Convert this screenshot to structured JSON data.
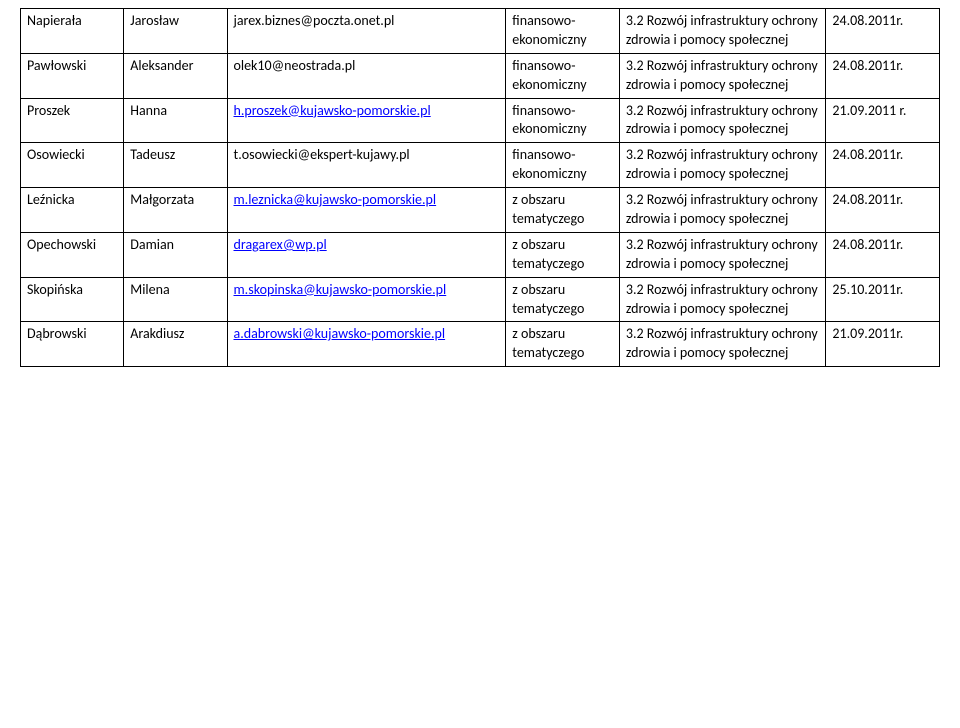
{
  "table": {
    "rows": [
      {
        "surname": "Napierała",
        "firstname": "Jarosław",
        "email": "jarex.biznes@poczta.onet.pl",
        "email_is_link": false,
        "area": "finansowo-ekonomiczny",
        "topic": "3.2 Rozwój infrastruktury ochrony zdrowia i pomocy społecznej",
        "date": "24.08.2011r."
      },
      {
        "surname": "Pawłowski",
        "firstname": "Aleksander",
        "email": "olek10@neostrada.pl",
        "email_is_link": false,
        "area": "finansowo-ekonomiczny",
        "topic": "3.2 Rozwój infrastruktury ochrony zdrowia i pomocy społecznej",
        "date": "24.08.2011r."
      },
      {
        "surname": "Proszek",
        "firstname": "Hanna",
        "email": "h.proszek@kujawsko-pomorskie.pl",
        "email_is_link": true,
        "area": "finansowo-ekonomiczny",
        "topic": "3.2 Rozwój infrastruktury ochrony zdrowia i pomocy społecznej",
        "date": "21.09.2011 r."
      },
      {
        "surname": "Osowiecki",
        "firstname": "Tadeusz",
        "email": "t.osowiecki@ekspert-kujawy.pl",
        "email_is_link": false,
        "area": "finansowo-ekonomiczny",
        "topic": "3.2 Rozwój infrastruktury ochrony zdrowia i pomocy społecznej",
        "date": "24.08.2011r."
      },
      {
        "surname": "Leźnicka",
        "firstname": "Małgorzata",
        "email": "m.leznicka@kujawsko-pomorskie.pl",
        "email_is_link": true,
        "area": "z obszaru tematyczego",
        "topic": "3.2 Rozwój infrastruktury ochrony zdrowia i pomocy społecznej",
        "date": "24.08.2011r."
      },
      {
        "surname": "Opechowski",
        "firstname": "Damian",
        "email": "dragarex@wp.pl",
        "email_is_link": true,
        "area": "z obszaru tematyczego",
        "topic": "3.2 Rozwój infrastruktury ochrony zdrowia i pomocy społecznej",
        "date": "24.08.2011r."
      },
      {
        "surname": "Skopińska",
        "firstname": "Milena",
        "email": "m.skopinska@kujawsko-pomorskie.pl",
        "email_is_link": true,
        "area": "z obszaru tematyczego",
        "topic": "3.2 Rozwój infrastruktury ochrony zdrowia i pomocy społecznej",
        "date": "25.10.2011r."
      },
      {
        "surname": "Dąbrowski",
        "firstname": "Arakdiusz",
        "email": "a.dabrowski@kujawsko-pomorskie.pl",
        "email_is_link": true,
        "area": "z obszaru tematyczego",
        "topic": "3.2 Rozwój infrastruktury ochrony zdrowia i pomocy społecznej",
        "date": "21.09.2011r."
      }
    ]
  }
}
